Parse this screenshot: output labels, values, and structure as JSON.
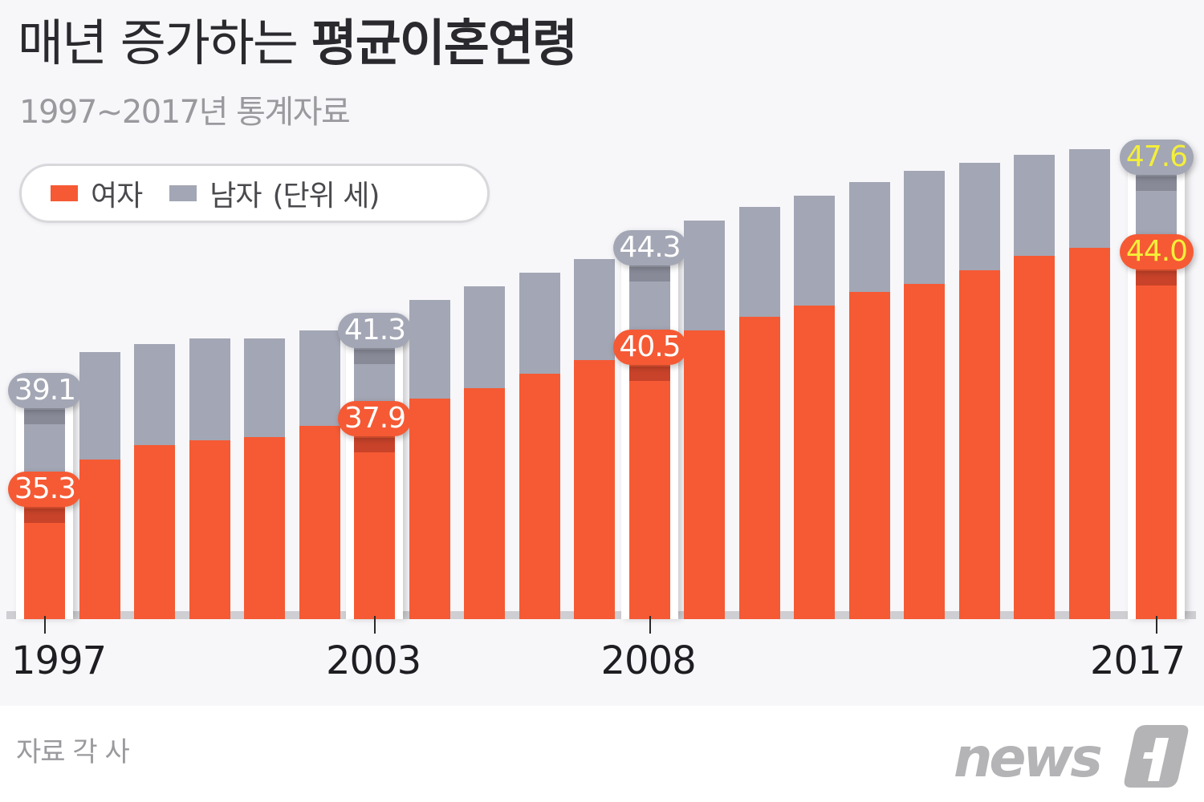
{
  "header": {
    "title_normal": "매년 증가하는",
    "title_bold": "평균이혼연령",
    "subtitle": "1997~2017년 통계자료"
  },
  "legend": {
    "female_label": "여자",
    "male_label": "남자",
    "unit_label": "(단위 세)",
    "female_color": "#f55a34",
    "male_color": "#a3a6b4"
  },
  "footer": {
    "source": "자료 각 사",
    "logo_text": "news1"
  },
  "x_labels": [
    {
      "year": "1997",
      "index": 0
    },
    {
      "year": "2003",
      "index": 6
    },
    {
      "year": "2008",
      "index": 11
    },
    {
      "year": "2017",
      "index": 20
    }
  ],
  "chart_data": {
    "type": "bar",
    "title": "매년 증가하는 평균이혼연령",
    "subtitle": "1997~2017년 통계자료",
    "xlabel": "",
    "ylabel": "평균이혼연령 (단위 세)",
    "categories": [
      "1997",
      "1998",
      "1999",
      "2000",
      "2001",
      "2002",
      "2003",
      "2004",
      "2005",
      "2006",
      "2007",
      "2008",
      "2009",
      "2010",
      "2011",
      "2012",
      "2013",
      "2014",
      "2015",
      "2016",
      "2017"
    ],
    "series": [
      {
        "name": "남자",
        "color": "#a3a6b4",
        "values": [
          39.1,
          40.5,
          40.8,
          41.0,
          41.0,
          41.3,
          41.3,
          42.4,
          42.9,
          43.4,
          43.9,
          44.3,
          45.3,
          45.8,
          46.2,
          46.7,
          47.1,
          47.4,
          47.7,
          47.9,
          47.6
        ]
      },
      {
        "name": "여자",
        "color": "#f55a34",
        "values": [
          35.3,
          36.6,
          37.1,
          37.3,
          37.4,
          37.8,
          37.9,
          38.8,
          39.2,
          39.7,
          40.2,
          40.5,
          41.3,
          41.8,
          42.2,
          42.7,
          43.0,
          43.5,
          44.0,
          44.3,
          44.0
        ]
      }
    ],
    "labeled_points": [
      {
        "year": "1997",
        "male": "39.1",
        "female": "35.3"
      },
      {
        "year": "2003",
        "male": "41.3",
        "female": "37.9"
      },
      {
        "year": "2008",
        "male": "44.3",
        "female": "40.5"
      },
      {
        "year": "2017",
        "male": "47.6",
        "female": "44.0"
      }
    ],
    "ylim": [
      31,
      50
    ],
    "overlapping_bars": true,
    "grid": false,
    "legend_position": "top-left"
  }
}
